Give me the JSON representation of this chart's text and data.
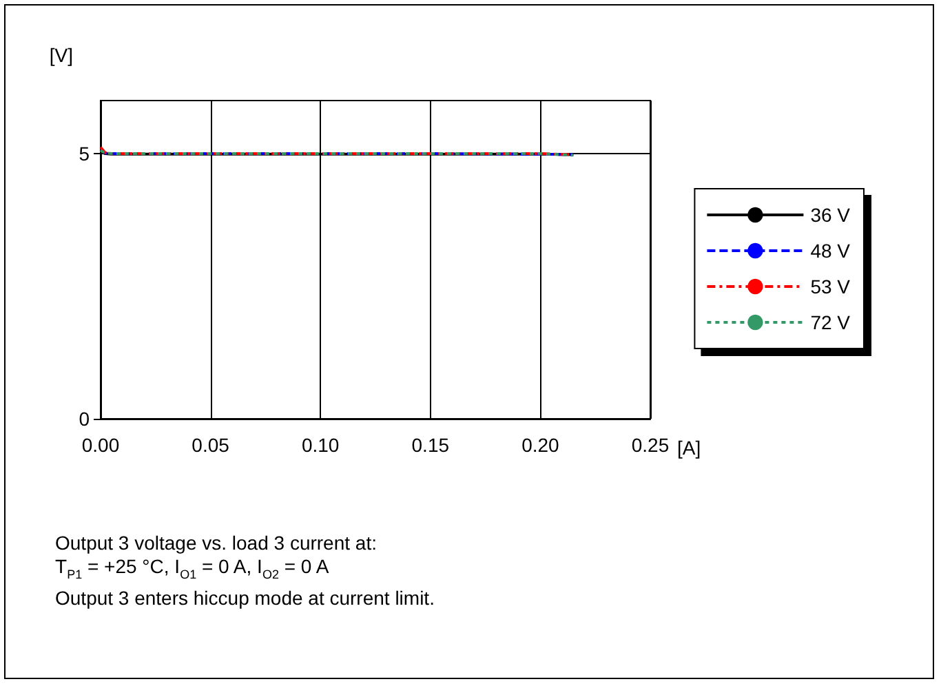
{
  "chart_data": {
    "type": "line",
    "xlabel": "[A]",
    "ylabel": "[V]",
    "xlim": [
      0,
      0.25
    ],
    "xticks": [
      {
        "value": 0,
        "label": "0.00"
      },
      0.05,
      {
        "value": 0.1,
        "label": "0.10"
      },
      0.15,
      {
        "value": 0.2,
        "label": "0.20"
      },
      0.25
    ],
    "ylim": [
      0,
      6
    ],
    "yticks": [
      0,
      5
    ],
    "grid": true,
    "legend": "right",
    "marker": "none",
    "series": [
      {
        "name": "36 V",
        "color": "#000000",
        "line_style": "solid",
        "x": [
          0,
          0.002,
          0.005,
          0.05,
          0.1,
          0.15,
          0.2,
          0.215
        ],
        "values": [
          5.05,
          5.0,
          4.99,
          4.99,
          4.99,
          4.99,
          4.99,
          4.98
        ]
      },
      {
        "name": "48 V",
        "color": "#0000ff",
        "line_style": "dashed",
        "x": [
          0,
          0.002,
          0.005,
          0.05,
          0.1,
          0.15,
          0.2,
          0.215
        ],
        "values": [
          5.08,
          5.01,
          5.0,
          5.0,
          5.0,
          5.0,
          4.99,
          4.98
        ]
      },
      {
        "name": "53 V",
        "color": "#ff0000",
        "line_style": "dashdot",
        "x": [
          0,
          0.002,
          0.005,
          0.05,
          0.1,
          0.15,
          0.2,
          0.215
        ],
        "values": [
          5.12,
          5.02,
          5.0,
          5.0,
          5.0,
          5.0,
          5.0,
          4.98
        ]
      },
      {
        "name": "72 V",
        "color": "#339966",
        "line_style": "dotted",
        "x": [
          0,
          0.002,
          0.005,
          0.05,
          0.1,
          0.15,
          0.2,
          0.215
        ],
        "values": [
          5.06,
          5.01,
          5.0,
          5.0,
          5.0,
          5.0,
          5.0,
          4.97
        ]
      }
    ],
    "annotations": [
      "Output 3 voltage vs. load 3 current at:",
      "T$_{P1}$ = +25 °C, I$_{O1}$ = 0 A, I$_{O2}$ = 0 A",
      "Output 3 enters hiccup mode at current limit."
    ]
  }
}
